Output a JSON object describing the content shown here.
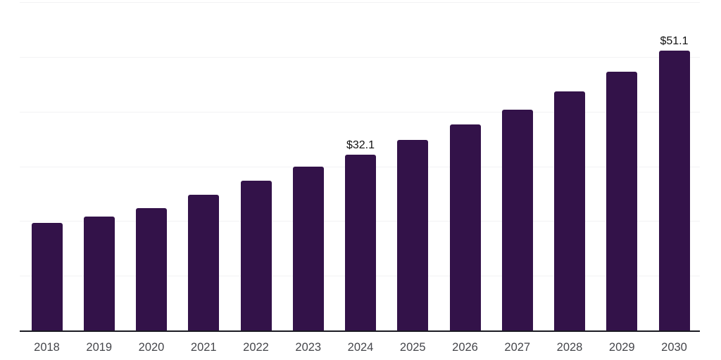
{
  "chart_data": {
    "type": "bar",
    "title": "",
    "xlabel": "",
    "ylabel": "",
    "categories": [
      "2018",
      "2019",
      "2020",
      "2021",
      "2022",
      "2023",
      "2024",
      "2025",
      "2026",
      "2027",
      "2028",
      "2029",
      "2030"
    ],
    "values": [
      19.7,
      20.8,
      22.4,
      24.8,
      27.4,
      30.0,
      32.1,
      34.8,
      37.6,
      40.3,
      43.7,
      47.3,
      51.1
    ],
    "data_labels": {
      "2024": "$32.1",
      "2030": "$51.1"
    },
    "ylim": [
      0,
      60
    ],
    "gridline_step": 10,
    "grid": true,
    "legend": false,
    "bar_color": "#331249",
    "axis_line_color": "#1a1a22",
    "gridline_color": "#f2f2f4",
    "tick_label_color": "#45464b",
    "data_label_color": "#111111"
  }
}
